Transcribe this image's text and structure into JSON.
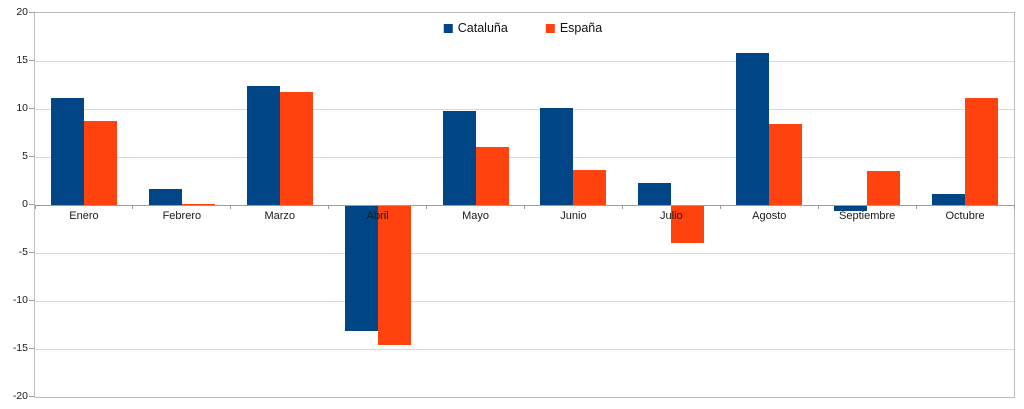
{
  "chart_data": {
    "type": "bar",
    "title": "",
    "xlabel": "",
    "ylabel": "",
    "categories": [
      "Enero",
      "Febrero",
      "Marzo",
      "Abril",
      "Mayo",
      "Junio",
      "Julio",
      "Agosto",
      "Septiembre",
      "Octubre"
    ],
    "series": [
      {
        "name": "Cataluña",
        "color": "#004586",
        "values": [
          11.1,
          1.7,
          12.4,
          -13.0,
          9.8,
          10.1,
          2.3,
          15.8,
          -0.5,
          1.1
        ]
      },
      {
        "name": "España",
        "color": "#FF420E",
        "values": [
          8.7,
          0.1,
          11.8,
          -14.5,
          6.0,
          3.6,
          -3.9,
          8.4,
          3.5,
          11.1
        ]
      }
    ],
    "ylim": [
      -20,
      20
    ],
    "y_ticks": [
      "20",
      "15",
      "10",
      "5",
      "0",
      "-5",
      "-10",
      "-15",
      "-20"
    ],
    "grid": true,
    "legend_position": "top-center"
  },
  "style": {
    "background": "#ffffff",
    "plot_border": "#bdbdbd",
    "gridline": "#d9d9d9",
    "axis_line": "#9b9b9b",
    "text_color": "#1a1a1a"
  }
}
